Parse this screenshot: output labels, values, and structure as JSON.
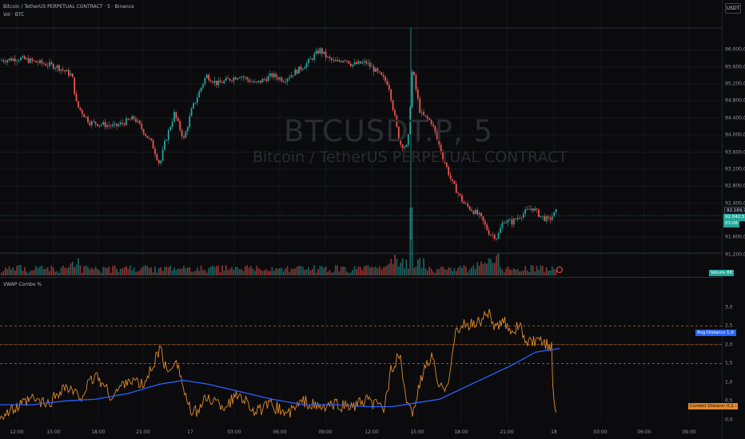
{
  "header": {
    "title": "Bitcoin / TetherUS PERPETUAL CONTRACT · 5 · Binance",
    "vol_label": "Vol · BTC",
    "currency_button": "USDT"
  },
  "watermark": {
    "symbol": "BTCUSDT.P, 5",
    "description": "Bitcoin / TetherUS PERPETUAL CONTRACT"
  },
  "price_axis": {
    "ticks": [
      "96.000,0",
      "95.600,0",
      "95.200,0",
      "94.800,0",
      "94.400,0",
      "94.000,0",
      "93.600,0",
      "93.200,0",
      "92.800,0",
      "92.400,0",
      "92.000,0",
      "91.600,0",
      "91.200,0"
    ],
    "tick_values": [
      96000,
      95600,
      95200,
      94800,
      94400,
      94000,
      93600,
      93200,
      92800,
      92400,
      92000,
      91600,
      91200
    ],
    "last_price_label": "92.042,5",
    "countdown_label": "03:08",
    "crosshair_label": "92.169,7",
    "volume_tag": "Volume",
    "volume_value": "88"
  },
  "indicator": {
    "name": "VWAP Combo %",
    "ticks": [
      "3,0",
      "2,5",
      "2,0",
      "1,5",
      "1,0",
      "0,5",
      "0,0"
    ],
    "tick_values": [
      3.0,
      2.5,
      2.0,
      1.5,
      1.0,
      0.5,
      0.0
    ],
    "avg_label": "Avg Distance (%)",
    "avg_value": "1,9",
    "cur_label": "Current Distance (%)",
    "cur_value": "0,1"
  },
  "time_axis": [
    "12:00",
    "15:00",
    "18:00",
    "21:00",
    "17",
    "03:00",
    "06:00",
    "09:00",
    "12:00",
    "15:00",
    "18:00",
    "21:00",
    "18",
    "03:00",
    "06:00",
    "09:00"
  ],
  "colors": {
    "background": "#0b0b0e",
    "up": "#26a69a",
    "down": "#ef5350",
    "avg_line": "#2962ff",
    "cur_line": "#e0882a",
    "level_line": "#e0882a"
  },
  "chart_data": [
    {
      "type": "line",
      "title": "Bitcoin / TetherUS PERPETUAL CONTRACT · 5 · Binance",
      "series": [
        {
          "name": "BTCUSDT.P",
          "x": [
            0,
            24,
            48,
            72,
            90,
            96,
            112,
            144,
            168,
            190,
            200,
            206,
            218,
            230,
            240,
            258,
            272,
            300,
            320,
            340,
            355,
            375,
            385,
            400,
            410,
            420,
            432,
            440,
            458,
            470,
            486,
            500,
            510,
            516,
            520,
            526,
            540,
            552,
            565,
            580,
            600,
            612,
            622,
            630,
            640,
            650,
            666,
            676,
            686,
            696
          ],
          "values": [
            95750,
            95800,
            95700,
            95600,
            95400,
            94700,
            94300,
            94200,
            94400,
            93800,
            93300,
            93800,
            94500,
            93900,
            94600,
            95400,
            95200,
            95400,
            95200,
            95400,
            95300,
            95550,
            95700,
            96000,
            95800,
            95700,
            95800,
            95650,
            95700,
            95500,
            95200,
            93800,
            93700,
            95600,
            95100,
            94500,
            94300,
            93600,
            92900,
            92400,
            92100,
            91700,
            91600,
            92000,
            91950,
            92100,
            92300,
            92100,
            92000,
            92200
          ]
        }
      ],
      "ylim": [
        91100,
        96400
      ]
    },
    {
      "type": "line",
      "title": "VWAP Combo %",
      "series": [
        {
          "name": "Avg Distance (%)",
          "x": [
            0,
            40,
            80,
            120,
            160,
            200,
            230,
            260,
            300,
            340,
            380,
            420,
            460,
            490,
            520,
            550,
            580,
            610,
            640,
            670,
            700
          ],
          "values": [
            0.4,
            0.4,
            0.5,
            0.55,
            0.7,
            0.95,
            1.05,
            0.95,
            0.75,
            0.55,
            0.4,
            0.4,
            0.35,
            0.35,
            0.45,
            0.55,
            0.85,
            1.15,
            1.45,
            1.8,
            1.9
          ]
        },
        {
          "name": "Current Distance (%)",
          "x": [
            0,
            20,
            40,
            60,
            80,
            100,
            120,
            140,
            160,
            180,
            200,
            210,
            220,
            230,
            240,
            260,
            280,
            300,
            320,
            340,
            360,
            380,
            400,
            420,
            440,
            460,
            480,
            490,
            500,
            510,
            515,
            520,
            530,
            540,
            550,
            560,
            570,
            580,
            600,
            610,
            620,
            630,
            640,
            650,
            660,
            670,
            680,
            690,
            692,
            696,
            700
          ],
          "values": [
            0.1,
            0.3,
            0.55,
            0.4,
            0.9,
            0.6,
            1.2,
            0.6,
            1.1,
            0.9,
            1.9,
            1.2,
            1.7,
            0.8,
            0.1,
            0.6,
            0.35,
            0.7,
            0.2,
            0.4,
            0.15,
            0.5,
            0.3,
            0.4,
            0.35,
            0.5,
            0.3,
            1.4,
            1.7,
            0.3,
            0.2,
            0.5,
            1.3,
            1.7,
            0.8,
            1.0,
            2.3,
            2.5,
            2.6,
            2.9,
            2.4,
            2.6,
            2.4,
            2.5,
            2.0,
            2.1,
            2.0,
            2.0,
            0.8,
            0.05,
            0.1
          ]
        }
      ],
      "ylim": [
        0,
        3.1
      ]
    }
  ]
}
